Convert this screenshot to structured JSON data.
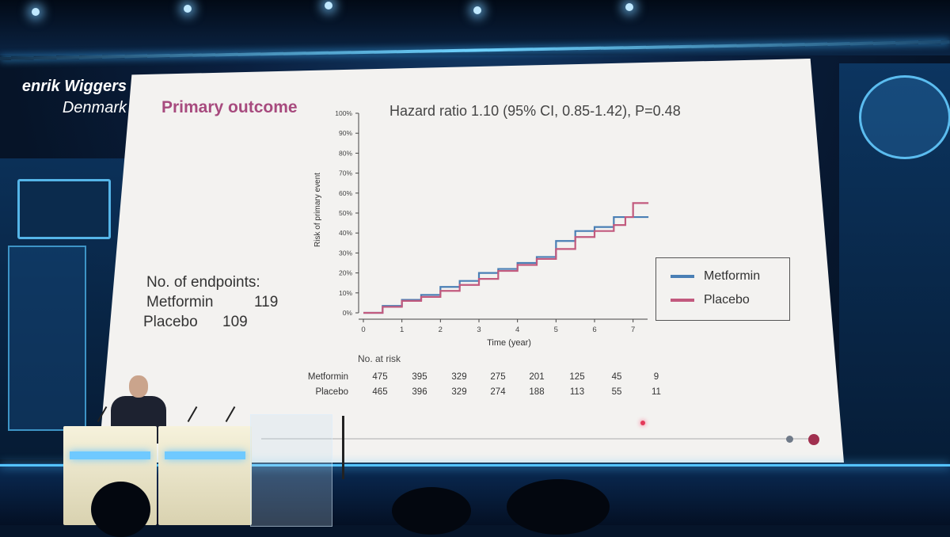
{
  "speaker": {
    "name": "enrik Wiggers",
    "country": "Denmark"
  },
  "slide": {
    "title": "Primary outcome",
    "endpoints": {
      "heading": "No. of endpoints:",
      "rows": [
        {
          "label": "Metformin",
          "value": "119"
        },
        {
          "label": "Placebo",
          "value": "109"
        }
      ]
    },
    "hazard_ratio": "Hazard ratio 1.10 (95% CI, 0.85-1.42), P=0.48",
    "legend": [
      {
        "label": "Metformin",
        "color": "#4a7fb5"
      },
      {
        "label": "Placebo",
        "color": "#c25a7e"
      }
    ],
    "at_risk": {
      "label": "No. at risk",
      "rows": [
        {
          "name": "Metformin",
          "values": [
            "475",
            "395",
            "329",
            "275",
            "201",
            "125",
            "45",
            "9"
          ]
        },
        {
          "name": "Placebo",
          "values": [
            "465",
            "396",
            "329",
            "274",
            "188",
            "113",
            "55",
            "11"
          ]
        }
      ]
    }
  },
  "chart_data": {
    "type": "line",
    "title": "",
    "xlabel": "Time (year)",
    "ylabel": "Risk of primary event",
    "xlim": [
      0,
      7.5
    ],
    "ylim": [
      0,
      100
    ],
    "x_ticks": [
      "0",
      "1",
      "2",
      "3",
      "4",
      "5",
      "6",
      "7"
    ],
    "y_ticks": [
      "0%",
      "10%",
      "20%",
      "30%",
      "40%",
      "50%",
      "60%",
      "70%",
      "80%",
      "90%",
      "100%"
    ],
    "series": [
      {
        "name": "Metformin",
        "color": "#4a7fb5",
        "points": [
          [
            0,
            0
          ],
          [
            0.5,
            3.5
          ],
          [
            1,
            6.5
          ],
          [
            1.5,
            9
          ],
          [
            2,
            13
          ],
          [
            2.5,
            16
          ],
          [
            3,
            20
          ],
          [
            3.5,
            22
          ],
          [
            4,
            25
          ],
          [
            4.5,
            28
          ],
          [
            5,
            36
          ],
          [
            5.5,
            41
          ],
          [
            6,
            43
          ],
          [
            6.5,
            48
          ],
          [
            7.4,
            48
          ]
        ]
      },
      {
        "name": "Placebo",
        "color": "#c25a7e",
        "points": [
          [
            0,
            0
          ],
          [
            0.5,
            3
          ],
          [
            1,
            6
          ],
          [
            1.5,
            8
          ],
          [
            2,
            11
          ],
          [
            2.5,
            14
          ],
          [
            3,
            17
          ],
          [
            3.5,
            21
          ],
          [
            4,
            24
          ],
          [
            4.5,
            27
          ],
          [
            5,
            32
          ],
          [
            5.5,
            38
          ],
          [
            6,
            41
          ],
          [
            6.5,
            44
          ],
          [
            6.8,
            48
          ],
          [
            7,
            55
          ],
          [
            7.4,
            55
          ]
        ]
      }
    ]
  }
}
